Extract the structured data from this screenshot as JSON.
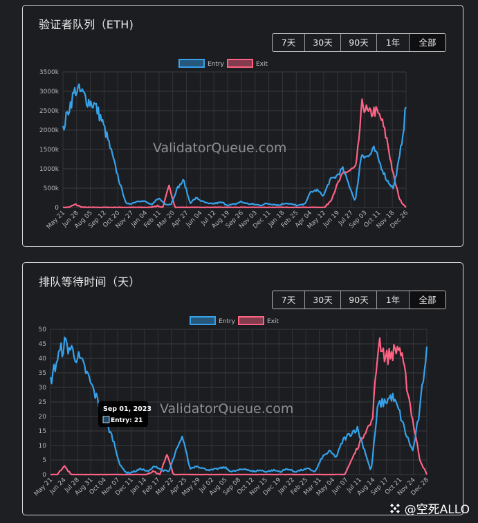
{
  "footer": {
    "text": "@空死ALLO"
  },
  "range_buttons": [
    "7天",
    "30天",
    "90天",
    "1年",
    "全部"
  ],
  "active_range": "全部",
  "colors": {
    "entry": "#36a2eb",
    "exit": "#ff6384"
  },
  "chart_data": [
    {
      "type": "line",
      "title": "验证者队列（ETH)",
      "watermark": "ValidatorQueue.com",
      "legend": [
        "Entry",
        "Exit"
      ],
      "y_ticks": [
        "3500k",
        "3000k",
        "2500k",
        "2000k",
        "1500k",
        "1000k",
        "500k",
        "0"
      ],
      "ylim": [
        0,
        3500
      ],
      "y_unit": "k ETH",
      "x_ticks": [
        "May 21",
        "Jun 28",
        "Aug 05",
        "Sep 12",
        "Oct 20",
        "Nov 27",
        "Jan 04",
        "Feb 11",
        "Mar 20",
        "Apr 27",
        "Jun 04",
        "Jul 12",
        "Aug 19",
        "Sep 26",
        "Nov 03",
        "Dec 11",
        "Jan 18",
        "Feb 25",
        "Apr 04",
        "May 12",
        "Jun 19",
        "Jul 27",
        "Sep 03",
        "Oct 11",
        "Nov 18",
        "Dec 26"
      ],
      "series": [
        {
          "name": "Entry",
          "color": "#36a2eb",
          "values": [
            2000,
            2600,
            3050,
            2950,
            2750,
            2650,
            2300,
            1800,
            1200,
            600,
            80,
            120,
            180,
            150,
            60,
            250,
            100,
            80,
            500,
            700,
            120,
            250,
            150,
            90,
            110,
            130,
            60,
            80,
            150,
            100,
            80,
            60,
            100,
            90,
            60,
            120,
            80,
            50,
            80,
            400,
            450,
            300,
            700,
            800,
            1000,
            600,
            150,
            1400,
            1300,
            1500,
            1100,
            700,
            500,
            1300,
            2600
          ]
        },
        {
          "name": "Exit",
          "color": "#ff6384",
          "values": [
            0,
            10,
            80,
            10,
            5,
            5,
            5,
            5,
            5,
            5,
            5,
            5,
            5,
            5,
            5,
            40,
            5,
            550,
            5,
            5,
            5,
            5,
            5,
            5,
            5,
            5,
            5,
            5,
            5,
            5,
            5,
            5,
            5,
            5,
            5,
            5,
            5,
            5,
            5,
            5,
            5,
            5,
            5,
            200,
            600,
            900,
            950,
            1050,
            2700,
            2400,
            2500,
            2300,
            1700,
            800,
            200,
            0
          ]
        }
      ]
    },
    {
      "type": "line",
      "title": "排队等待时间（天）",
      "watermark": "ValidatorQueue.com",
      "legend": [
        "Entry",
        "Exit"
      ],
      "y_ticks": [
        "50",
        "45",
        "40",
        "35",
        "30",
        "25",
        "20",
        "15",
        "10",
        "5",
        "0"
      ],
      "ylim": [
        0,
        50
      ],
      "y_unit": "days",
      "x_ticks": [
        "May 21",
        "Jun 24",
        "Jul 28",
        "Aug 31",
        "Oct 04",
        "Nov 07",
        "Dec 11",
        "Jan 14",
        "Feb 17",
        "Mar 22",
        "Apr 25",
        "May 29",
        "Jul 02",
        "Aug 05",
        "Sep 08",
        "Oct 12",
        "Nov 15",
        "Dec 19",
        "Jan 22",
        "Feb 25",
        "Mar 31",
        "May 04",
        "Jun 07",
        "Jul 11",
        "Aug 14",
        "Sep 17",
        "Oct 21",
        "Nov 24",
        "Dec 28"
      ],
      "series": [
        {
          "name": "Entry",
          "color": "#36a2eb",
          "values": [
            32,
            40,
            45,
            43,
            40,
            36,
            30,
            24,
            18,
            12,
            3,
            0.5,
            1,
            2,
            1,
            3,
            1.5,
            1,
            8,
            13,
            2,
            3,
            2,
            1.5,
            2,
            2.5,
            1,
            1.5,
            2,
            1,
            1.5,
            1,
            1.5,
            1,
            2,
            1,
            1.5,
            2,
            1,
            6,
            8,
            6,
            12,
            14,
            16,
            9,
            1,
            24,
            25,
            27,
            22,
            14,
            8,
            22,
            45
          ]
        },
        {
          "name": "Exit",
          "color": "#ff6384",
          "values": [
            0,
            0,
            3,
            0,
            0,
            0,
            0,
            0,
            0,
            0,
            0,
            0,
            0,
            0,
            0,
            1,
            0,
            7,
            0,
            0,
            0,
            0,
            0,
            0,
            0,
            0,
            0,
            0,
            0,
            0,
            0,
            0,
            0,
            0,
            0,
            0,
            0,
            0,
            0,
            0,
            0,
            0,
            0,
            0,
            5,
            10,
            15,
            18,
            47,
            40,
            42,
            44,
            32,
            18,
            5,
            0
          ]
        }
      ],
      "tooltip": {
        "date": "Sep 01, 2023",
        "series": "Entry",
        "value": 21,
        "label": "Entry: 21"
      }
    }
  ]
}
